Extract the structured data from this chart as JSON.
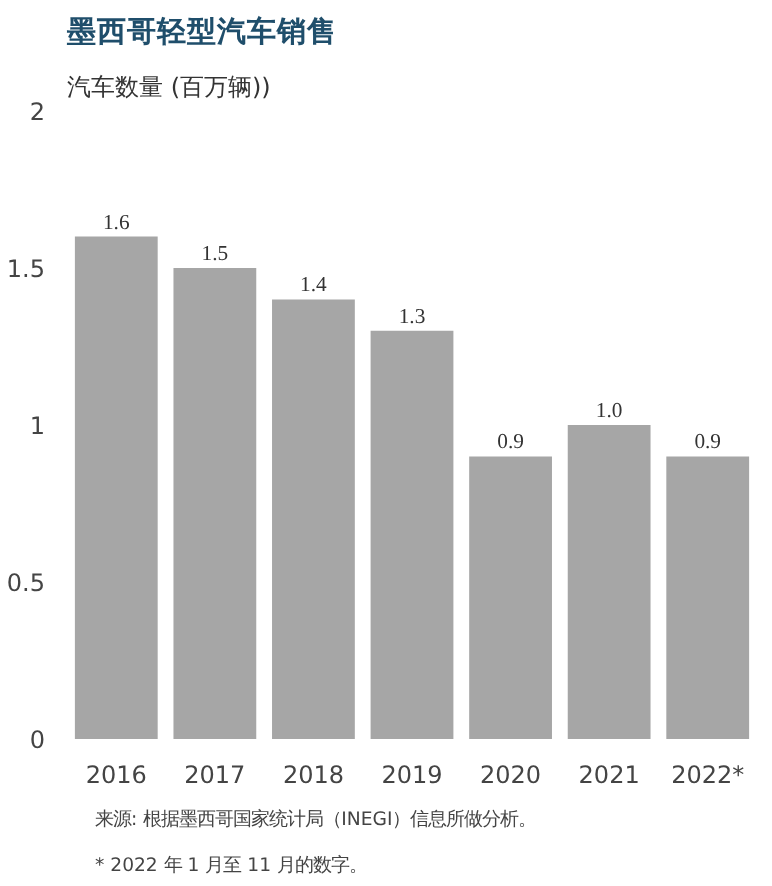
{
  "chart_data": {
    "type": "bar",
    "title": "墨西哥轻型汽车销售",
    "ylabel": "汽车数量 (百万辆))",
    "categories": [
      "2016",
      "2017",
      "2018",
      "2019",
      "2020",
      "2021",
      "2022*"
    ],
    "values": [
      1.6,
      1.5,
      1.4,
      1.3,
      0.9,
      1.0,
      0.9
    ],
    "value_labels": [
      "1.6",
      "1.5",
      "1.4",
      "1.3",
      "0.9",
      "1.0",
      "0.9"
    ],
    "color": "#a6a6a6",
    "ylim": [
      0,
      2
    ],
    "yticks": [
      0,
      0.5,
      1,
      1.5,
      2
    ],
    "grid": false,
    "annotations": [
      "来源: 根据墨西哥国家统计局（INEGI）信息所做分析。",
      "* 2022 年 1 月至 11 月的数字。"
    ]
  }
}
